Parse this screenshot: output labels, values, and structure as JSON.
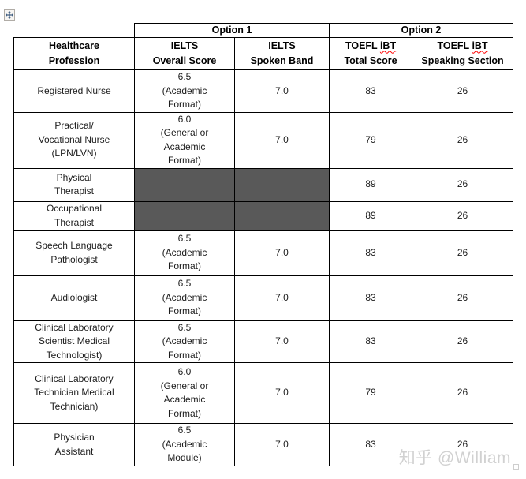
{
  "editor": {
    "move_handle_icon": "table-move-handle",
    "watermark": "知乎 @William"
  },
  "table": {
    "option_headers": [
      "Option 1",
      "Option 2"
    ],
    "column_headers": [
      {
        "lines": [
          "Healthcare",
          "Profession"
        ]
      },
      {
        "lines": [
          "IELTS",
          "Overall Score"
        ]
      },
      {
        "lines": [
          "IELTS",
          "Spoken Band"
        ]
      },
      {
        "lines": [
          "TOEFL iBT",
          "Total Score"
        ],
        "misspelled_word": "iBT"
      },
      {
        "lines": [
          "TOEFL iBT",
          "Speaking Section"
        ],
        "misspelled_word": "iBT"
      }
    ],
    "rows": [
      {
        "profession": [
          "Registered Nurse"
        ],
        "ielts_overall": [
          "6.5",
          "(Academic",
          "Format)"
        ],
        "ielts_spoken": "7.0",
        "toefl_total": "83",
        "toefl_speaking": "26",
        "ielts_unavailable": false
      },
      {
        "profession": [
          "Practical/",
          "Vocational Nurse",
          "(LPN/LVN)"
        ],
        "ielts_overall": [
          "6.0",
          "(General or",
          "Academic",
          "Format)"
        ],
        "ielts_spoken": "7.0",
        "toefl_total": "79",
        "toefl_speaking": "26",
        "ielts_unavailable": false
      },
      {
        "profession": [
          "Physical",
          "Therapist"
        ],
        "ielts_overall": [],
        "ielts_spoken": "",
        "toefl_total": "89",
        "toefl_speaking": "26",
        "ielts_unavailable": true
      },
      {
        "profession": [
          "Occupational",
          "Therapist"
        ],
        "ielts_overall": [],
        "ielts_spoken": "",
        "toefl_total": "89",
        "toefl_speaking": "26",
        "ielts_unavailable": true
      },
      {
        "profession": [
          "Speech Language",
          "Pathologist"
        ],
        "ielts_overall": [
          "6.5",
          "(Academic",
          "Format)"
        ],
        "ielts_spoken": "7.0",
        "toefl_total": "83",
        "toefl_speaking": "26",
        "ielts_unavailable": false
      },
      {
        "profession": [
          "Audiologist"
        ],
        "ielts_overall": [
          "6.5",
          "(Academic",
          "Format)"
        ],
        "ielts_spoken": "7.0",
        "toefl_total": "83",
        "toefl_speaking": "26",
        "ielts_unavailable": false
      },
      {
        "profession": [
          "Clinical Laboratory",
          "Scientist Medical",
          "Technologist)"
        ],
        "ielts_overall": [
          "6.5",
          "(Academic",
          "Format)"
        ],
        "ielts_spoken": "7.0",
        "toefl_total": "83",
        "toefl_speaking": "26",
        "ielts_unavailable": false
      },
      {
        "profession": [
          "Clinical Laboratory",
          "Technician Medical",
          "Technician)"
        ],
        "ielts_overall": [
          "6.0",
          "(General or",
          "Academic",
          "Format)"
        ],
        "ielts_spoken": "7.0",
        "toefl_total": "79",
        "toefl_speaking": "26",
        "ielts_unavailable": false
      },
      {
        "profession": [
          "Physician",
          "Assistant"
        ],
        "ielts_overall": [
          "6.5",
          "(Academic",
          "Module)"
        ],
        "ielts_spoken": "7.0",
        "toefl_total": "83",
        "toefl_speaking": "26",
        "ielts_unavailable": false
      }
    ]
  },
  "colors": {
    "grayed_cell": "#595959",
    "border": "#000000",
    "misspell_underline": "#ff0000",
    "watermark": "#c9c9c9"
  }
}
